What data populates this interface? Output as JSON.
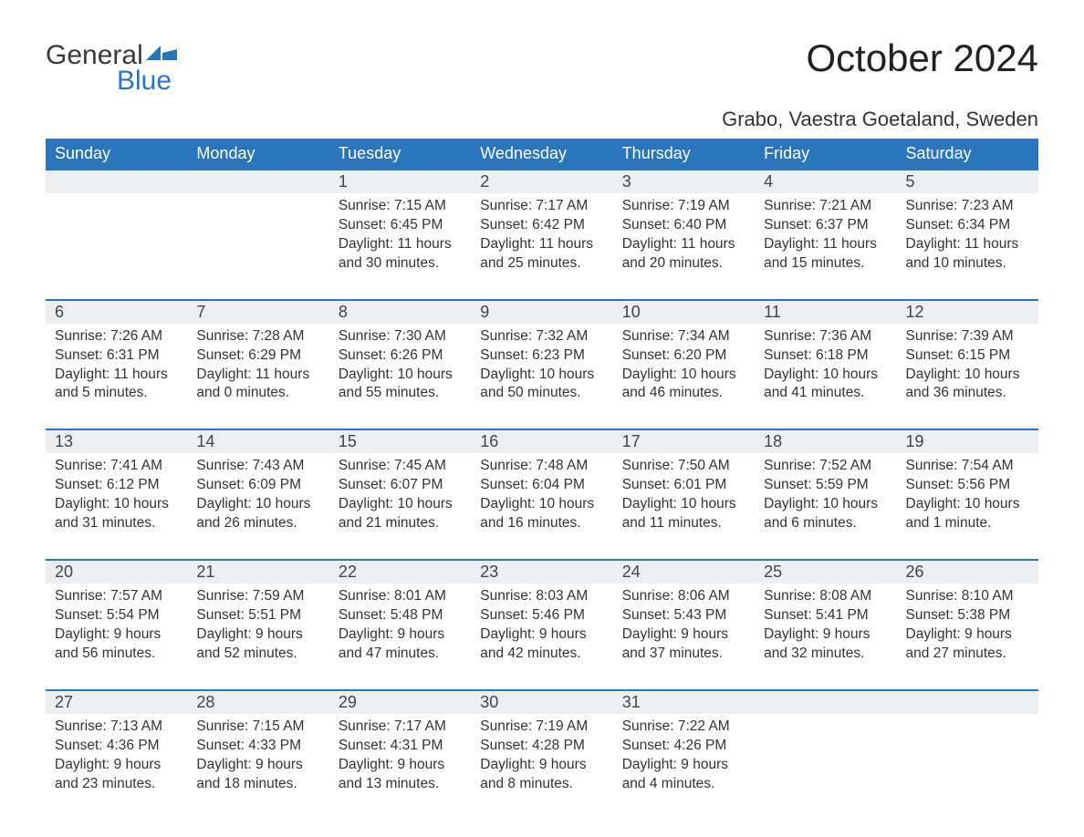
{
  "brand": {
    "word1": "General",
    "word2": "Blue",
    "accent_color": "#2a75bb"
  },
  "title": "October 2024",
  "subtitle": "Grabo, Vaestra Goetaland, Sweden",
  "styling": {
    "header_bg": "#2a75bb",
    "header_text": "#ffffff",
    "daynum_bg": "#eceeef",
    "daynum_border": "#2a75bb",
    "body_text": "#333333",
    "title_fontsize_pt": 32,
    "subtitle_fontsize_pt": 17,
    "header_fontsize_pt": 14,
    "cell_fontsize_pt": 12,
    "font_family": "Arial"
  },
  "weekdays": [
    "Sunday",
    "Monday",
    "Tuesday",
    "Wednesday",
    "Thursday",
    "Friday",
    "Saturday"
  ],
  "weeks": [
    [
      null,
      null,
      {
        "n": "1",
        "sr": "Sunrise: 7:15 AM",
        "ss": "Sunset: 6:45 PM",
        "d1": "Daylight: 11 hours",
        "d2": "and 30 minutes."
      },
      {
        "n": "2",
        "sr": "Sunrise: 7:17 AM",
        "ss": "Sunset: 6:42 PM",
        "d1": "Daylight: 11 hours",
        "d2": "and 25 minutes."
      },
      {
        "n": "3",
        "sr": "Sunrise: 7:19 AM",
        "ss": "Sunset: 6:40 PM",
        "d1": "Daylight: 11 hours",
        "d2": "and 20 minutes."
      },
      {
        "n": "4",
        "sr": "Sunrise: 7:21 AM",
        "ss": "Sunset: 6:37 PM",
        "d1": "Daylight: 11 hours",
        "d2": "and 15 minutes."
      },
      {
        "n": "5",
        "sr": "Sunrise: 7:23 AM",
        "ss": "Sunset: 6:34 PM",
        "d1": "Daylight: 11 hours",
        "d2": "and 10 minutes."
      }
    ],
    [
      {
        "n": "6",
        "sr": "Sunrise: 7:26 AM",
        "ss": "Sunset: 6:31 PM",
        "d1": "Daylight: 11 hours",
        "d2": "and 5 minutes."
      },
      {
        "n": "7",
        "sr": "Sunrise: 7:28 AM",
        "ss": "Sunset: 6:29 PM",
        "d1": "Daylight: 11 hours",
        "d2": "and 0 minutes."
      },
      {
        "n": "8",
        "sr": "Sunrise: 7:30 AM",
        "ss": "Sunset: 6:26 PM",
        "d1": "Daylight: 10 hours",
        "d2": "and 55 minutes."
      },
      {
        "n": "9",
        "sr": "Sunrise: 7:32 AM",
        "ss": "Sunset: 6:23 PM",
        "d1": "Daylight: 10 hours",
        "d2": "and 50 minutes."
      },
      {
        "n": "10",
        "sr": "Sunrise: 7:34 AM",
        "ss": "Sunset: 6:20 PM",
        "d1": "Daylight: 10 hours",
        "d2": "and 46 minutes."
      },
      {
        "n": "11",
        "sr": "Sunrise: 7:36 AM",
        "ss": "Sunset: 6:18 PM",
        "d1": "Daylight: 10 hours",
        "d2": "and 41 minutes."
      },
      {
        "n": "12",
        "sr": "Sunrise: 7:39 AM",
        "ss": "Sunset: 6:15 PM",
        "d1": "Daylight: 10 hours",
        "d2": "and 36 minutes."
      }
    ],
    [
      {
        "n": "13",
        "sr": "Sunrise: 7:41 AM",
        "ss": "Sunset: 6:12 PM",
        "d1": "Daylight: 10 hours",
        "d2": "and 31 minutes."
      },
      {
        "n": "14",
        "sr": "Sunrise: 7:43 AM",
        "ss": "Sunset: 6:09 PM",
        "d1": "Daylight: 10 hours",
        "d2": "and 26 minutes."
      },
      {
        "n": "15",
        "sr": "Sunrise: 7:45 AM",
        "ss": "Sunset: 6:07 PM",
        "d1": "Daylight: 10 hours",
        "d2": "and 21 minutes."
      },
      {
        "n": "16",
        "sr": "Sunrise: 7:48 AM",
        "ss": "Sunset: 6:04 PM",
        "d1": "Daylight: 10 hours",
        "d2": "and 16 minutes."
      },
      {
        "n": "17",
        "sr": "Sunrise: 7:50 AM",
        "ss": "Sunset: 6:01 PM",
        "d1": "Daylight: 10 hours",
        "d2": "and 11 minutes."
      },
      {
        "n": "18",
        "sr": "Sunrise: 7:52 AM",
        "ss": "Sunset: 5:59 PM",
        "d1": "Daylight: 10 hours",
        "d2": "and 6 minutes."
      },
      {
        "n": "19",
        "sr": "Sunrise: 7:54 AM",
        "ss": "Sunset: 5:56 PM",
        "d1": "Daylight: 10 hours",
        "d2": "and 1 minute."
      }
    ],
    [
      {
        "n": "20",
        "sr": "Sunrise: 7:57 AM",
        "ss": "Sunset: 5:54 PM",
        "d1": "Daylight: 9 hours",
        "d2": "and 56 minutes."
      },
      {
        "n": "21",
        "sr": "Sunrise: 7:59 AM",
        "ss": "Sunset: 5:51 PM",
        "d1": "Daylight: 9 hours",
        "d2": "and 52 minutes."
      },
      {
        "n": "22",
        "sr": "Sunrise: 8:01 AM",
        "ss": "Sunset: 5:48 PM",
        "d1": "Daylight: 9 hours",
        "d2": "and 47 minutes."
      },
      {
        "n": "23",
        "sr": "Sunrise: 8:03 AM",
        "ss": "Sunset: 5:46 PM",
        "d1": "Daylight: 9 hours",
        "d2": "and 42 minutes."
      },
      {
        "n": "24",
        "sr": "Sunrise: 8:06 AM",
        "ss": "Sunset: 5:43 PM",
        "d1": "Daylight: 9 hours",
        "d2": "and 37 minutes."
      },
      {
        "n": "25",
        "sr": "Sunrise: 8:08 AM",
        "ss": "Sunset: 5:41 PM",
        "d1": "Daylight: 9 hours",
        "d2": "and 32 minutes."
      },
      {
        "n": "26",
        "sr": "Sunrise: 8:10 AM",
        "ss": "Sunset: 5:38 PM",
        "d1": "Daylight: 9 hours",
        "d2": "and 27 minutes."
      }
    ],
    [
      {
        "n": "27",
        "sr": "Sunrise: 7:13 AM",
        "ss": "Sunset: 4:36 PM",
        "d1": "Daylight: 9 hours",
        "d2": "and 23 minutes."
      },
      {
        "n": "28",
        "sr": "Sunrise: 7:15 AM",
        "ss": "Sunset: 4:33 PM",
        "d1": "Daylight: 9 hours",
        "d2": "and 18 minutes."
      },
      {
        "n": "29",
        "sr": "Sunrise: 7:17 AM",
        "ss": "Sunset: 4:31 PM",
        "d1": "Daylight: 9 hours",
        "d2": "and 13 minutes."
      },
      {
        "n": "30",
        "sr": "Sunrise: 7:19 AM",
        "ss": "Sunset: 4:28 PM",
        "d1": "Daylight: 9 hours",
        "d2": "and 8 minutes."
      },
      {
        "n": "31",
        "sr": "Sunrise: 7:22 AM",
        "ss": "Sunset: 4:26 PM",
        "d1": "Daylight: 9 hours",
        "d2": "and 4 minutes."
      },
      null,
      null
    ]
  ]
}
